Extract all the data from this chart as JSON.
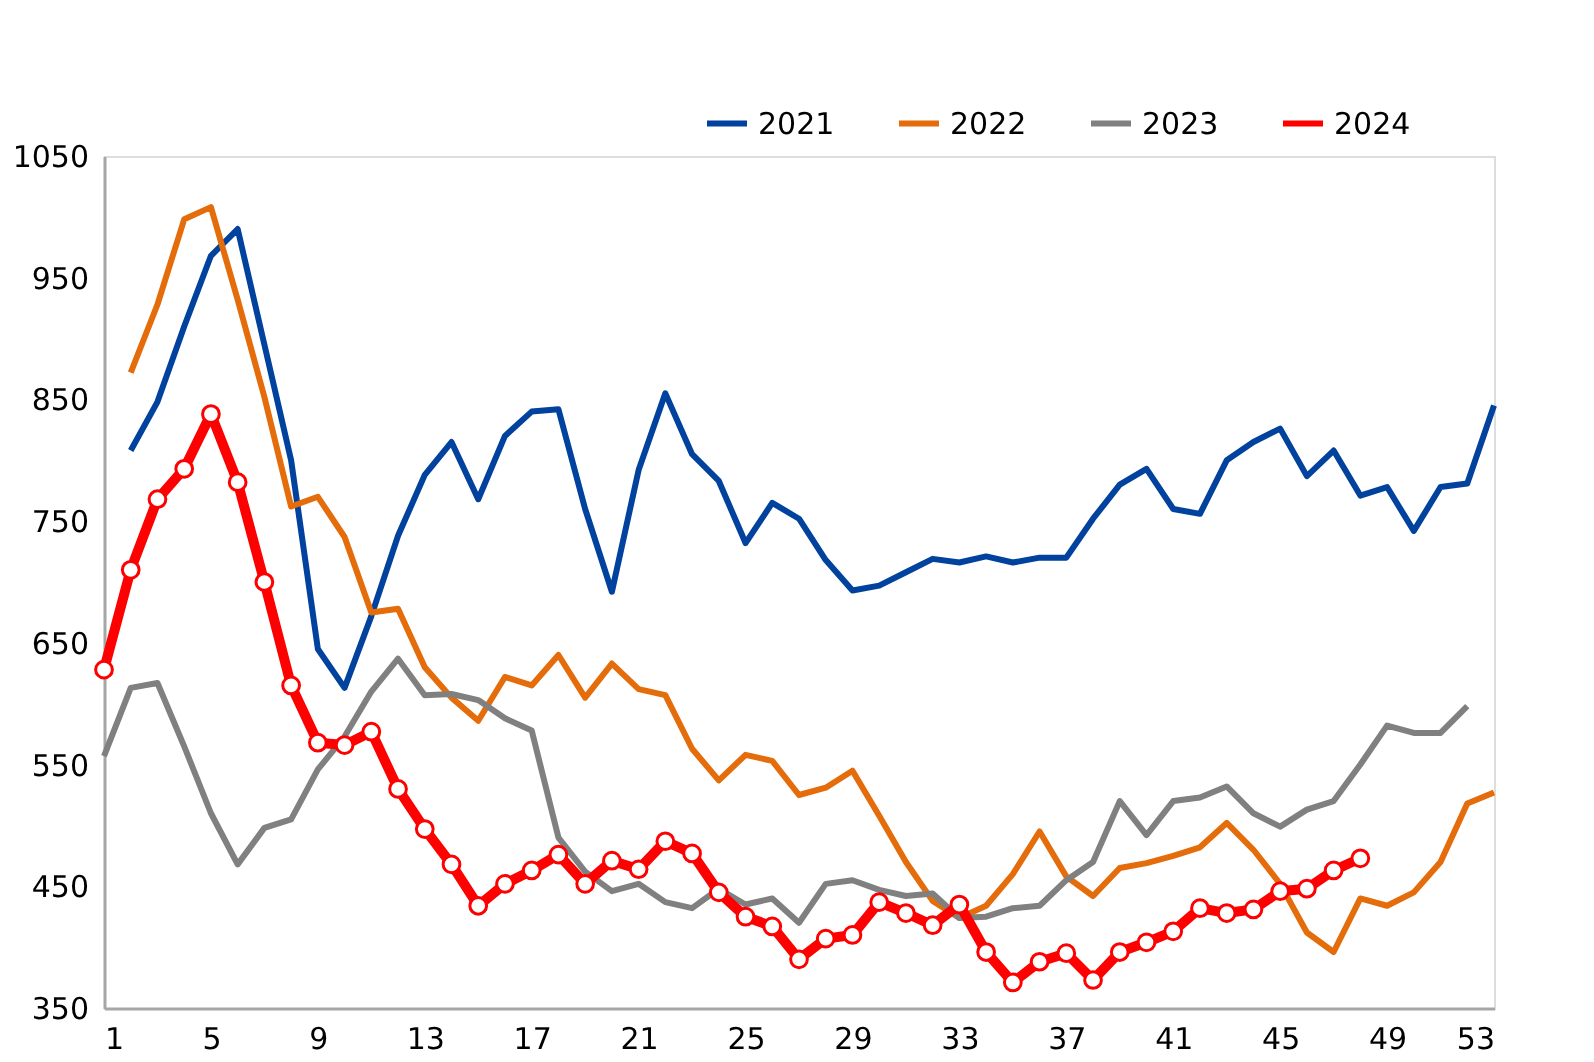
{
  "chart_data": {
    "type": "line",
    "xlim": [
      1,
      53
    ],
    "xticks": [
      1,
      5,
      9,
      13,
      17,
      21,
      25,
      29,
      33,
      37,
      41,
      45,
      49,
      53
    ],
    "ylim": [
      350,
      1050
    ],
    "yticks": [
      350,
      450,
      550,
      650,
      750,
      850,
      950,
      1050
    ],
    "grid": false,
    "legend": "top right",
    "series": [
      {
        "name": "2021",
        "color": "#00429d",
        "marker": "none",
        "x": [
          2,
          3,
          4,
          5,
          6,
          7,
          8,
          9,
          10,
          11,
          12,
          13,
          14,
          15,
          16,
          17,
          18,
          19,
          20,
          21,
          22,
          23,
          24,
          25,
          26,
          27,
          28,
          29,
          30,
          31,
          32,
          33,
          34,
          35,
          36,
          37,
          38,
          39,
          40,
          41,
          42,
          43,
          44,
          45,
          46,
          47,
          48,
          49,
          50,
          51,
          52,
          53
        ],
        "values": [
          808,
          848,
          910,
          968,
          990,
          895,
          800,
          645,
          613,
          672,
          738,
          788,
          815,
          768,
          820,
          840,
          842,
          760,
          692,
          792,
          855,
          805,
          783,
          732,
          765,
          752,
          718,
          693,
          697,
          708,
          719,
          716,
          721,
          716,
          720,
          720,
          752,
          780,
          793,
          760,
          756,
          800,
          815,
          826,
          787,
          808,
          771,
          778,
          742,
          778,
          781,
          845
        ]
      },
      {
        "name": "2022",
        "color": "#e46c0a",
        "marker": "none",
        "x": [
          2,
          3,
          4,
          5,
          6,
          7,
          8,
          9,
          10,
          11,
          12,
          13,
          14,
          15,
          16,
          17,
          18,
          19,
          20,
          21,
          22,
          23,
          24,
          25,
          26,
          27,
          28,
          29,
          30,
          31,
          32,
          33,
          34,
          35,
          36,
          37,
          38,
          39,
          40,
          41,
          42,
          43,
          44,
          45,
          46,
          47,
          48,
          49,
          50,
          51,
          52,
          53
        ],
        "values": [
          872,
          928,
          998,
          1008,
          932,
          852,
          762,
          770,
          737,
          675,
          678,
          630,
          605,
          586,
          622,
          615,
          640,
          605,
          633,
          612,
          607,
          563,
          537,
          558,
          553,
          525,
          531,
          545,
          508,
          470,
          438,
          424,
          434,
          460,
          495,
          458,
          442,
          465,
          469,
          475,
          482,
          502,
          480,
          452,
          412,
          396,
          440,
          434,
          445,
          470,
          518,
          527
        ]
      },
      {
        "name": "2023",
        "color": "#808080",
        "marker": "none",
        "x": [
          1,
          2,
          3,
          4,
          5,
          6,
          7,
          8,
          9,
          10,
          11,
          12,
          13,
          14,
          15,
          16,
          17,
          18,
          19,
          20,
          21,
          22,
          23,
          24,
          25,
          26,
          27,
          28,
          29,
          30,
          31,
          32,
          33,
          34,
          35,
          36,
          37,
          38,
          39,
          40,
          41,
          42,
          43,
          44,
          45,
          46,
          47,
          48,
          49,
          50,
          51,
          52
        ],
        "values": [
          557,
          613,
          617,
          565,
          510,
          468,
          498,
          505,
          546,
          573,
          610,
          637,
          607,
          608,
          603,
          588,
          578,
          490,
          462,
          446,
          452,
          437,
          432,
          448,
          435,
          440,
          420,
          452,
          455,
          447,
          442,
          444,
          424,
          425,
          432,
          434,
          455,
          470,
          520,
          492,
          520,
          523,
          532,
          510,
          499,
          513,
          520,
          550,
          582,
          576,
          576,
          598
        ]
      },
      {
        "name": "2024",
        "color": "#ff0000",
        "marker": "circle",
        "x": [
          1,
          2,
          3,
          4,
          5,
          6,
          7,
          8,
          9,
          10,
          11,
          12,
          13,
          14,
          15,
          16,
          17,
          18,
          19,
          20,
          21,
          22,
          23,
          24,
          25,
          26,
          27,
          28,
          29,
          30,
          31,
          32,
          33,
          34,
          35,
          36,
          37,
          38,
          39,
          40,
          41,
          42,
          43,
          44,
          45,
          46,
          47,
          48
        ],
        "values": [
          628,
          710,
          768,
          793,
          838,
          782,
          700,
          615,
          568,
          566,
          577,
          530,
          497,
          468,
          434,
          452,
          463,
          476,
          452,
          471,
          464,
          487,
          477,
          445,
          425,
          417,
          390,
          407,
          410,
          437,
          428,
          418,
          435,
          396,
          371,
          388,
          395,
          373,
          396,
          404,
          413,
          432,
          428,
          431,
          446,
          448,
          463,
          473
        ]
      }
    ]
  }
}
